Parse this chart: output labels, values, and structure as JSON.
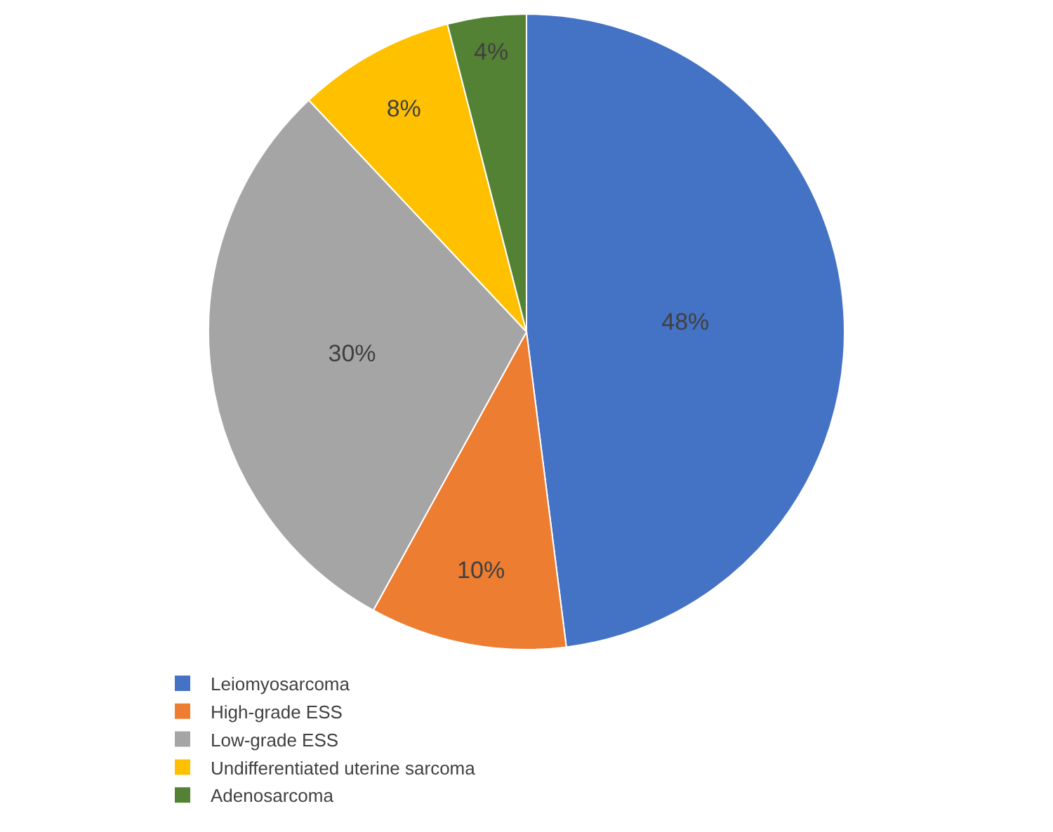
{
  "chart_data": {
    "type": "pie",
    "categories": [
      "Leiomyosarcoma",
      "High-grade ESS",
      "Low-grade ESS",
      "Undifferentiated uterine sarcoma",
      "Adenosarcoma"
    ],
    "values": [
      48,
      10,
      30,
      8,
      4
    ],
    "value_labels": [
      "48%",
      "10%",
      "30%",
      "8%",
      "4%"
    ],
    "colors": [
      "#4472c4",
      "#ed7d31",
      "#a5a5a5",
      "#ffc000",
      "#548235"
    ],
    "legend": "bottom"
  }
}
